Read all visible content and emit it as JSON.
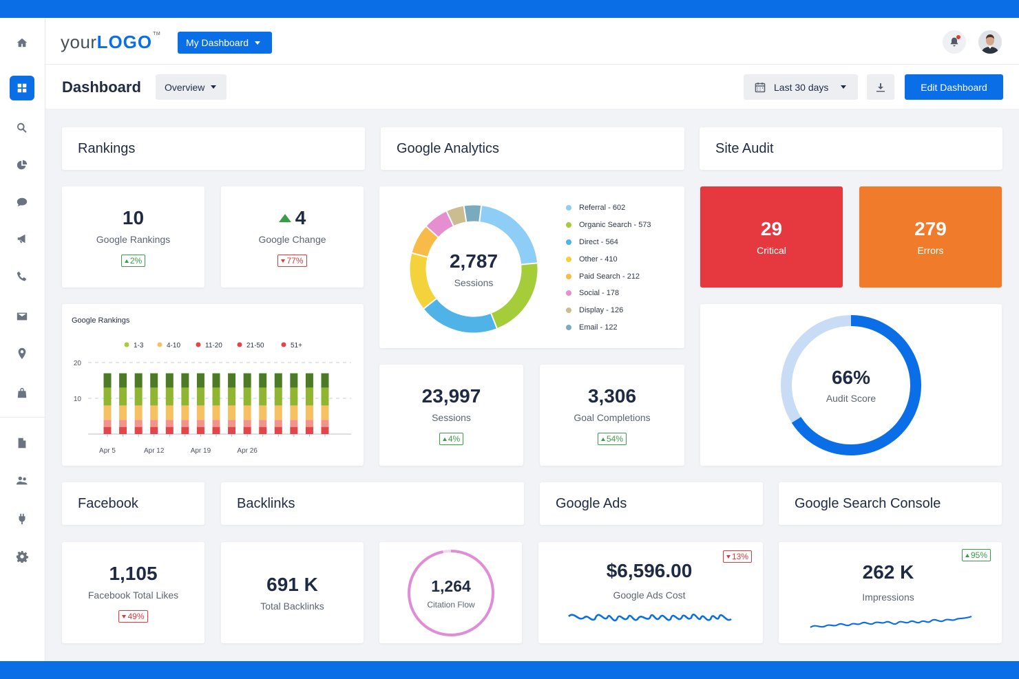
{
  "colors": {
    "accent": "#0a6ee6",
    "critical": "#e5383f",
    "errors": "#f07b2a",
    "up": "#3a9c4a",
    "down": "#d93b3b"
  },
  "sidebar": {
    "items": [
      {
        "name": "home-icon"
      },
      {
        "name": "dashboard-icon",
        "active": true
      },
      {
        "name": "search-icon"
      },
      {
        "name": "pie-chart-icon"
      },
      {
        "name": "chat-icon"
      },
      {
        "name": "megaphone-icon"
      },
      {
        "name": "phone-icon"
      },
      {
        "name": "mail-icon"
      },
      {
        "name": "location-pin-icon"
      },
      {
        "name": "shopping-bag-icon"
      },
      {
        "name": "document-icon"
      },
      {
        "name": "users-icon"
      },
      {
        "name": "plug-icon"
      },
      {
        "name": "gear-icon"
      }
    ]
  },
  "topbar": {
    "logo_plain": "your",
    "logo_bold": "LOGO",
    "logo_tm": "TM",
    "dashboard_menu": "My Dashboard"
  },
  "subbar": {
    "title": "Dashboard",
    "view": "Overview",
    "date_range": "Last 30 days",
    "edit_button": "Edit Dashboard"
  },
  "rankings": {
    "title": "Rankings",
    "google_rankings": {
      "value": "10",
      "label": "Google Rankings",
      "change": "2%",
      "direction": "up"
    },
    "google_change": {
      "value": "4",
      "label": "Google Change",
      "change": "77%",
      "direction": "down"
    }
  },
  "google_analytics": {
    "title": "Google Analytics",
    "donut_total": "2,787",
    "donut_label": "Sessions",
    "sessions": {
      "value": "23,997",
      "label": "Sessions",
      "change": "4%"
    },
    "goals": {
      "value": "3,306",
      "label": "Goal Completions",
      "change": "54%"
    }
  },
  "site_audit": {
    "title": "Site Audit",
    "critical": {
      "value": "29",
      "label": "Critical"
    },
    "errors": {
      "value": "279",
      "label": "Errors"
    },
    "score": {
      "value": "66%",
      "label": "Audit Score",
      "fraction": 0.66
    }
  },
  "facebook": {
    "title": "Facebook",
    "likes": {
      "value": "1,105",
      "label": "Facebook Total Likes",
      "change": "49%"
    }
  },
  "backlinks": {
    "title": "Backlinks",
    "total": {
      "value": "691 K",
      "label": "Total Backlinks"
    },
    "citation": {
      "value": "1,264",
      "label": "Citation Flow",
      "fraction": 0.97
    }
  },
  "google_ads": {
    "title": "Google Ads",
    "cost": {
      "value": "$6,596.00",
      "label": "Google Ads Cost",
      "change": "13%"
    }
  },
  "gsc": {
    "title": "Google Search Console",
    "impressions": {
      "value": "262 K",
      "label": "Impressions",
      "change": "95%"
    }
  },
  "chart_data": [
    {
      "type": "bar",
      "title": "Google Rankings",
      "stacked": true,
      "legend_position": "top",
      "ylim": [
        0,
        20
      ],
      "yticks": [
        "10",
        "20"
      ],
      "xticklabels": [
        "Apr 5",
        "Apr 12",
        "Apr 19",
        "Apr 26"
      ],
      "categories": [
        "1",
        "2",
        "3",
        "4",
        "5",
        "6",
        "7",
        "8",
        "9",
        "10",
        "11",
        "12",
        "13",
        "14",
        "15"
      ],
      "series": [
        {
          "name": "51+",
          "color": "#e0464a",
          "values": [
            2,
            2,
            2,
            2,
            2,
            2,
            2,
            2,
            2,
            2,
            2,
            2,
            2,
            2,
            2
          ]
        },
        {
          "name": "21-50",
          "color": "#f2948a",
          "values": [
            2,
            2,
            2,
            2,
            2,
            2,
            2,
            2,
            2,
            2,
            2,
            2,
            2,
            2,
            2
          ]
        },
        {
          "name": "11-20",
          "color": "#f7c163",
          "values": [
            4,
            4,
            4,
            4,
            4,
            4,
            4,
            4,
            4,
            4,
            4,
            4,
            4,
            4,
            4
          ]
        },
        {
          "name": "4-10",
          "color": "#8fb531",
          "values": [
            5,
            5,
            5,
            5,
            5,
            5,
            5,
            5,
            5,
            5,
            5,
            5,
            5,
            5,
            5
          ]
        },
        {
          "name": "1-3",
          "color": "#4d7a24",
          "values": [
            4,
            4,
            4,
            4,
            4,
            4,
            4,
            4,
            4,
            4,
            4,
            4,
            4,
            4,
            4
          ]
        }
      ],
      "legend_order": [
        "1-3",
        "4-10",
        "11-20",
        "21-50",
        "51+"
      ],
      "legend_colors": [
        "#a5cd39",
        "#f7c163",
        "#e0464a",
        "#e0464a",
        "#e0464a"
      ]
    },
    {
      "type": "pie",
      "title": "Sessions",
      "total": 2787,
      "slices": [
        {
          "name": "Referral - 602",
          "value": 602,
          "color": "#8ecdf6"
        },
        {
          "name": "Organic Search - 573",
          "value": 573,
          "color": "#a5cd39"
        },
        {
          "name": "Direct - 564",
          "value": 564,
          "color": "#4fb3e8"
        },
        {
          "name": "Other - 410",
          "value": 410,
          "color": "#f3d23c"
        },
        {
          "name": "Paid Search - 212",
          "value": 212,
          "color": "#f9bb48"
        },
        {
          "name": "Social - 178",
          "value": 178,
          "color": "#e58fd1"
        },
        {
          "name": "Display - 126",
          "value": 126,
          "color": "#cbbd8f"
        },
        {
          "name": "Email - 122",
          "value": 122,
          "color": "#7aaabd"
        }
      ]
    }
  ]
}
